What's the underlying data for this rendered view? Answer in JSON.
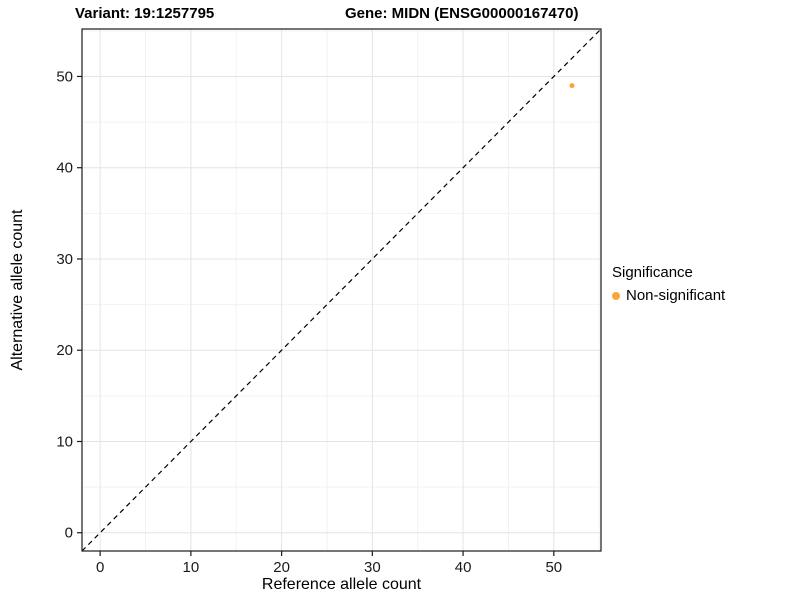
{
  "chart_data": {
    "type": "scatter",
    "title_left": "Variant: 19:1257795",
    "title_right": "Gene: MIDN (ENSG00000167470)",
    "xlabel": "Reference allele count",
    "ylabel": "Alternative allele count",
    "xlim": [
      -2,
      55.2
    ],
    "ylim": [
      -2,
      55.2
    ],
    "xticks": [
      0,
      10,
      20,
      30,
      40,
      50
    ],
    "yticks": [
      0,
      10,
      20,
      30,
      40,
      50
    ],
    "grid": true,
    "minor_grid_step": 5,
    "identity_line": {
      "style": "dashed",
      "color": "#000000",
      "from": [
        -2,
        -2
      ],
      "to": [
        55.2,
        55.2
      ]
    },
    "points": [
      {
        "x": 52,
        "y": 49,
        "series": "Non-significant",
        "color": "#FCA436",
        "radius": 2.5
      }
    ],
    "legend": {
      "title": "Significance",
      "position": "right",
      "entries": [
        {
          "label": "Non-significant",
          "color": "#FCA436"
        }
      ]
    },
    "colors": {
      "grid_major": "#E4E4E4",
      "grid_minor": "#F2F2F2",
      "panel_border": "#1A1A1A",
      "axis_text": "#1A1A1A",
      "panel_bg": "#FFFFFF"
    }
  }
}
